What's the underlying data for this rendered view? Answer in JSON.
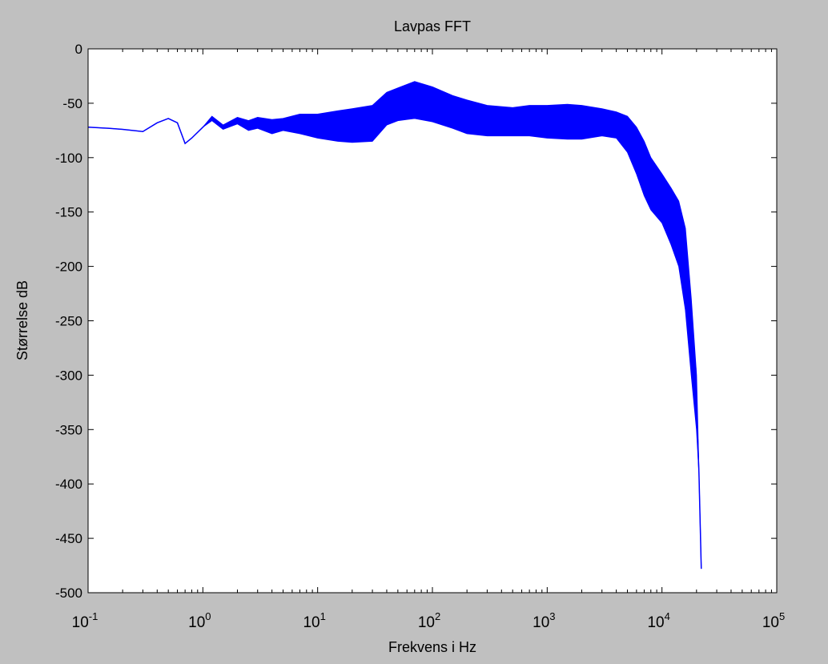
{
  "colors": {
    "figure_bg": "#c0c0c0",
    "axes_bg": "#ffffff",
    "series": "#0000ff",
    "axis": "#000000"
  },
  "chart_data": {
    "type": "line",
    "title": "Lavpas FFT",
    "xlabel": "Frekvens i Hz",
    "ylabel": "Størrelse dB",
    "xscale": "log",
    "xlim": [
      0.1,
      100000
    ],
    "ylim": [
      -500,
      0
    ],
    "grid": false,
    "legend": "none",
    "yticks": [
      0,
      -50,
      -100,
      -150,
      -200,
      -250,
      -300,
      -350,
      -400,
      -450,
      -500
    ],
    "ytick_labels": [
      "0",
      "-50",
      "-100",
      "-150",
      "-200",
      "-250",
      "-300",
      "-350",
      "-400",
      "-450",
      "-500"
    ],
    "xticks": [
      0.1,
      1,
      10,
      100,
      1000,
      10000,
      100000
    ],
    "xtick_labels": [
      {
        "base": "10",
        "exp": "-1"
      },
      {
        "base": "10",
        "exp": "0"
      },
      {
        "base": "10",
        "exp": "1"
      },
      {
        "base": "10",
        "exp": "2"
      },
      {
        "base": "10",
        "exp": "3"
      },
      {
        "base": "10",
        "exp": "4"
      },
      {
        "base": "10",
        "exp": "5"
      }
    ],
    "series": [
      {
        "x": [
          0.1,
          0.15,
          0.2,
          0.3,
          0.4,
          0.5,
          0.6,
          0.7,
          0.8,
          1,
          1.2,
          1.5,
          2,
          2.5,
          3,
          4,
          5,
          7,
          10,
          15,
          20,
          30,
          40,
          50,
          70,
          100,
          150,
          200,
          300,
          500,
          700,
          1000,
          1500,
          2000,
          3000,
          4000,
          5000,
          6000,
          7000,
          8000,
          10000,
          12000,
          14000,
          16000,
          18000,
          20000,
          21000,
          22000
        ],
        "y": [
          -72,
          -73,
          -74,
          -76,
          -68,
          -64,
          -68,
          -87,
          -82,
          -72,
          -64,
          -72,
          -66,
          -70,
          -68,
          -72,
          -70,
          -68,
          -70,
          -68,
          -66,
          -62,
          -55,
          -50,
          -46,
          -50,
          -55,
          -58,
          -60,
          -62,
          -60,
          -61,
          -62,
          -62,
          -62,
          -64,
          -72,
          -90,
          -110,
          -125,
          -140,
          -155,
          -172,
          -200,
          -260,
          -330,
          -390,
          -478
        ],
        "band_upper": [
          -72,
          -73,
          -74,
          -76,
          -68,
          -64,
          -68,
          -87,
          -82,
          -72,
          -62,
          -70,
          -63,
          -66,
          -63,
          -65,
          -64,
          -60,
          -60,
          -57,
          -55,
          -52,
          -40,
          -36,
          -30,
          -35,
          -43,
          -47,
          -52,
          -54,
          -52,
          -52,
          -51,
          -52,
          -55,
          -58,
          -62,
          -72,
          -85,
          -100,
          -115,
          -128,
          -140,
          -165,
          -230,
          -300,
          -390,
          -478
        ],
        "band_lower": [
          -72,
          -73,
          -74,
          -76,
          -68,
          -64,
          -68,
          -87,
          -82,
          -72,
          -66,
          -74,
          -69,
          -75,
          -73,
          -78,
          -75,
          -78,
          -82,
          -85,
          -86,
          -85,
          -70,
          -66,
          -64,
          -67,
          -73,
          -78,
          -80,
          -80,
          -80,
          -82,
          -83,
          -83,
          -80,
          -82,
          -95,
          -115,
          -135,
          -148,
          -160,
          -180,
          -200,
          -240,
          -300,
          -350,
          -390,
          -478
        ]
      }
    ]
  }
}
